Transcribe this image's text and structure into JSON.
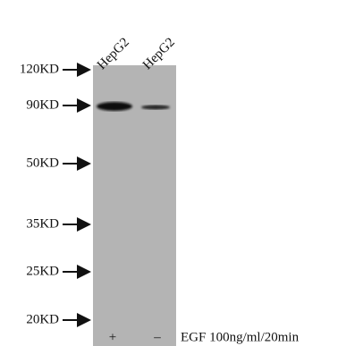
{
  "lanes": [
    "HepG2",
    "HepG2"
  ],
  "markers": [
    "120KD",
    "90KD",
    "50KD",
    "35KD",
    "25KD",
    "20KD"
  ],
  "treatments": [
    "+",
    "–"
  ],
  "treatment_label": "EGF 100ng/ml/20min"
}
